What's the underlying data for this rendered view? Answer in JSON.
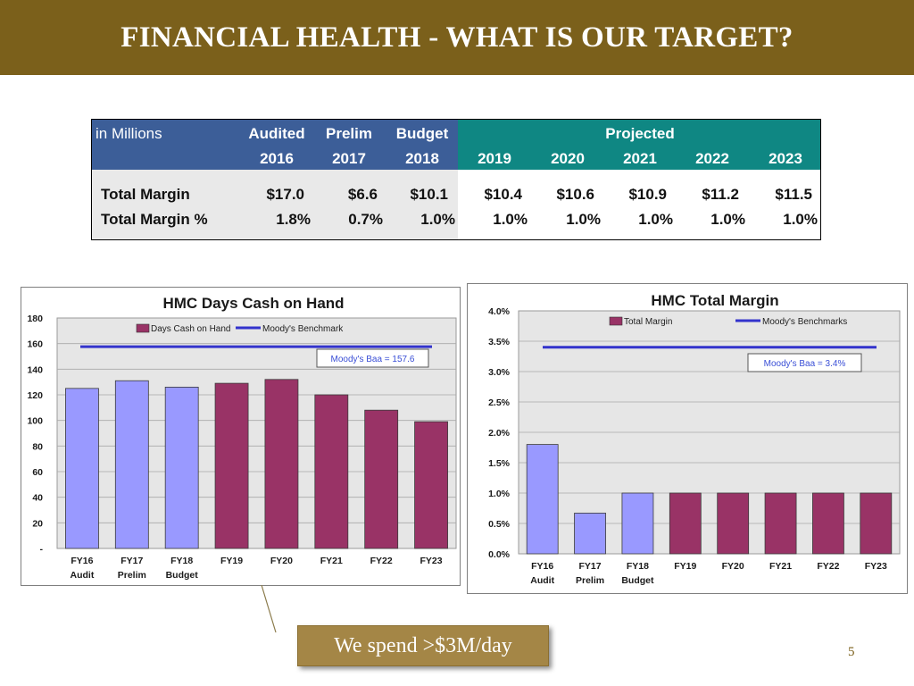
{
  "title": "FINANCIAL HEALTH - WHAT IS OUR TARGET?",
  "table": {
    "units_label": "in Millions",
    "col_groups": [
      {
        "top": "Audited",
        "bottom": "2016"
      },
      {
        "top": "Prelim",
        "bottom": "2017"
      },
      {
        "top": "Budget",
        "bottom": "2018"
      }
    ],
    "projected_label": "Projected",
    "projected_years": [
      "2019",
      "2020",
      "2021",
      "2022",
      "2023"
    ],
    "rows": [
      {
        "label": "Total Margin",
        "values": [
          "$17.0",
          "$6.6",
          "$10.1",
          "$10.4",
          "$10.6",
          "$10.9",
          "$11.2",
          "$11.5"
        ]
      },
      {
        "label": "Total Margin %",
        "values": [
          "1.8%",
          "0.7%",
          "1.0%",
          "1.0%",
          "1.0%",
          "1.0%",
          "1.0%",
          "1.0%"
        ]
      }
    ],
    "colors": {
      "header_blue": "#3c5e98",
      "header_teal": "#0f8783"
    }
  },
  "chart_data": [
    {
      "type": "bar",
      "title": "HMC Days Cash on Hand",
      "categories": [
        "FY16",
        "FY17",
        "FY18",
        "FY19",
        "FY20",
        "FY21",
        "FY22",
        "FY23"
      ],
      "category_sublabels": [
        "Audit",
        "Prelim",
        "Budget",
        "",
        "",
        "",
        "",
        ""
      ],
      "series": [
        {
          "name": "Days Cash on Hand",
          "values": [
            125,
            131,
            126,
            129,
            132,
            120,
            108,
            99
          ]
        },
        {
          "name": "Moody's Benchmark",
          "type": "line",
          "values": [
            157.6,
            157.6,
            157.6,
            157.6,
            157.6,
            157.6,
            157.6,
            157.6
          ]
        }
      ],
      "actual_count": 3,
      "bar_colors": {
        "actual": "#9999ff",
        "projected": "#993366"
      },
      "benchmark_color": "#3333cc",
      "ylim": [
        0,
        180
      ],
      "yticks": [
        "-",
        "20",
        "40",
        "60",
        "80",
        "100",
        "120",
        "140",
        "160",
        "180"
      ],
      "annotation": "Moody's Baa = 157.6",
      "grid": true,
      "legend": "top"
    },
    {
      "type": "bar",
      "title": "HMC Total Margin",
      "categories": [
        "FY16",
        "FY17",
        "FY18",
        "FY19",
        "FY20",
        "FY21",
        "FY22",
        "FY23"
      ],
      "category_sublabels": [
        "Audit",
        "Prelim",
        "Budget",
        "",
        "",
        "",
        "",
        ""
      ],
      "series": [
        {
          "name": "Total Margin",
          "values": [
            1.8,
            0.67,
            1.0,
            1.0,
            1.0,
            1.0,
            1.0,
            1.0
          ]
        },
        {
          "name": "Moody's Benchmarks",
          "type": "line",
          "values": [
            3.4,
            3.4,
            3.4,
            3.4,
            3.4,
            3.4,
            3.4,
            3.4
          ]
        }
      ],
      "actual_count": 3,
      "bar_colors": {
        "actual": "#9999ff",
        "projected": "#993366"
      },
      "benchmark_color": "#3333cc",
      "ylim": [
        0,
        4
      ],
      "yticks": [
        "0.0%",
        "0.5%",
        "1.0%",
        "1.5%",
        "2.0%",
        "2.5%",
        "3.0%",
        "3.5%",
        "4.0%"
      ],
      "annotation": "Moody's Baa = 3.4%",
      "grid": true,
      "legend": "top"
    }
  ],
  "callout": "We spend >$3M/day",
  "page_number": "5"
}
